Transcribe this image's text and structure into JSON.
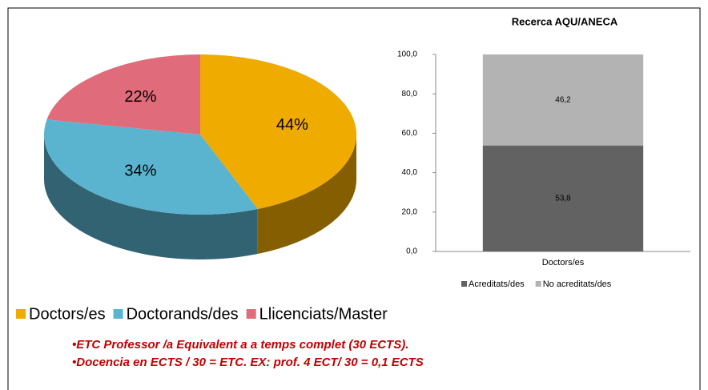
{
  "chart_data": [
    {
      "type": "pie",
      "categories": [
        "Doctors/es",
        "Doctorands/des",
        "Llicenciats/Master"
      ],
      "values": [
        44,
        34,
        22
      ],
      "value_labels": [
        "44%",
        "34%",
        "22%"
      ],
      "colors": [
        "#f0ab00",
        "#5ab4cf",
        "#e06b7a"
      ],
      "legend": "bottom"
    },
    {
      "type": "stacked_bar",
      "title": "Recerca AQU/ANECA",
      "categories": [
        "Doctors/es"
      ],
      "series": [
        {
          "name": "Acreditats/des",
          "color": "#626262",
          "values": [
            53.8
          ],
          "value_labels": [
            "53,8"
          ]
        },
        {
          "name": "No acreditats/des",
          "color": "#b3b3b3",
          "values": [
            46.2
          ],
          "value_labels": [
            "46,2"
          ]
        }
      ],
      "ylim": [
        0,
        100
      ],
      "yticks": [
        {
          "value": 0,
          "label": "0,0"
        },
        {
          "value": 20,
          "label": "20,0"
        },
        {
          "value": 40,
          "label": "40,0"
        },
        {
          "value": 60,
          "label": "60,0"
        },
        {
          "value": 80,
          "label": "80,0"
        },
        {
          "value": 100,
          "label": "100,0"
        }
      ],
      "legend": "bottom"
    }
  ],
  "notes": [
    "•ETC Professor /a  Equivalent a a temps complet (30 ECTS).",
    "•Docencia en ECTS / 30 = ETC. EX: prof. 4 ECT/ 30 = 0,1 ECTS"
  ]
}
